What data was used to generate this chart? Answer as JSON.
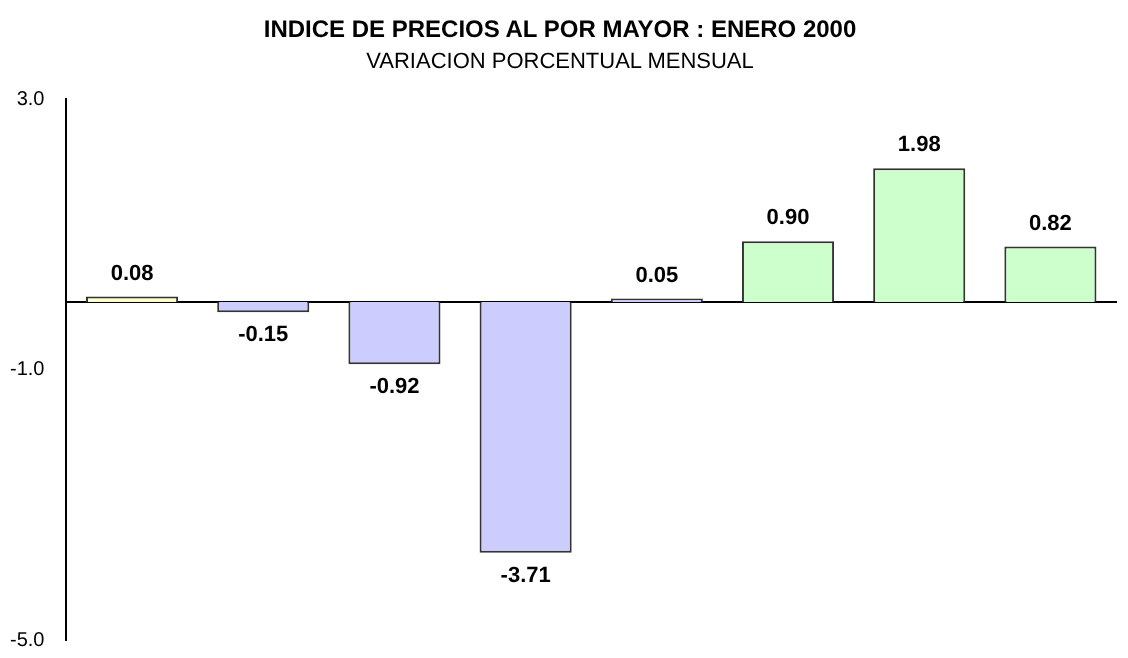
{
  "chart_data": {
    "type": "bar",
    "title": "INDICE DE PRECIOS AL POR MAYOR : ENERO 2000",
    "subtitle": "VARIACION PORCENTUAL MENSUAL",
    "categories": [
      null,
      null,
      null,
      null,
      null,
      null,
      null,
      null
    ],
    "values": [
      0.08,
      -0.15,
      -0.92,
      -3.71,
      0.05,
      0.9,
      1.98,
      0.82
    ],
    "colors": [
      "#ffffcc",
      "#ccccff",
      "#ccccff",
      "#ccccff",
      "#ccccff",
      "#ccffcc",
      "#ccffcc",
      "#ccffcc"
    ],
    "value_labels": [
      "0.08",
      "-0.15",
      "-0.92",
      "-3.71",
      "0.05",
      "0.90",
      "1.98",
      "0.82"
    ],
    "ylim": [
      -5,
      3
    ],
    "yticks": [
      {
        "value": 3,
        "label": "3.0"
      },
      {
        "value": -1,
        "label": "-1.0"
      },
      {
        "value": -5,
        "label": "-5.0"
      }
    ],
    "grid": false
  }
}
